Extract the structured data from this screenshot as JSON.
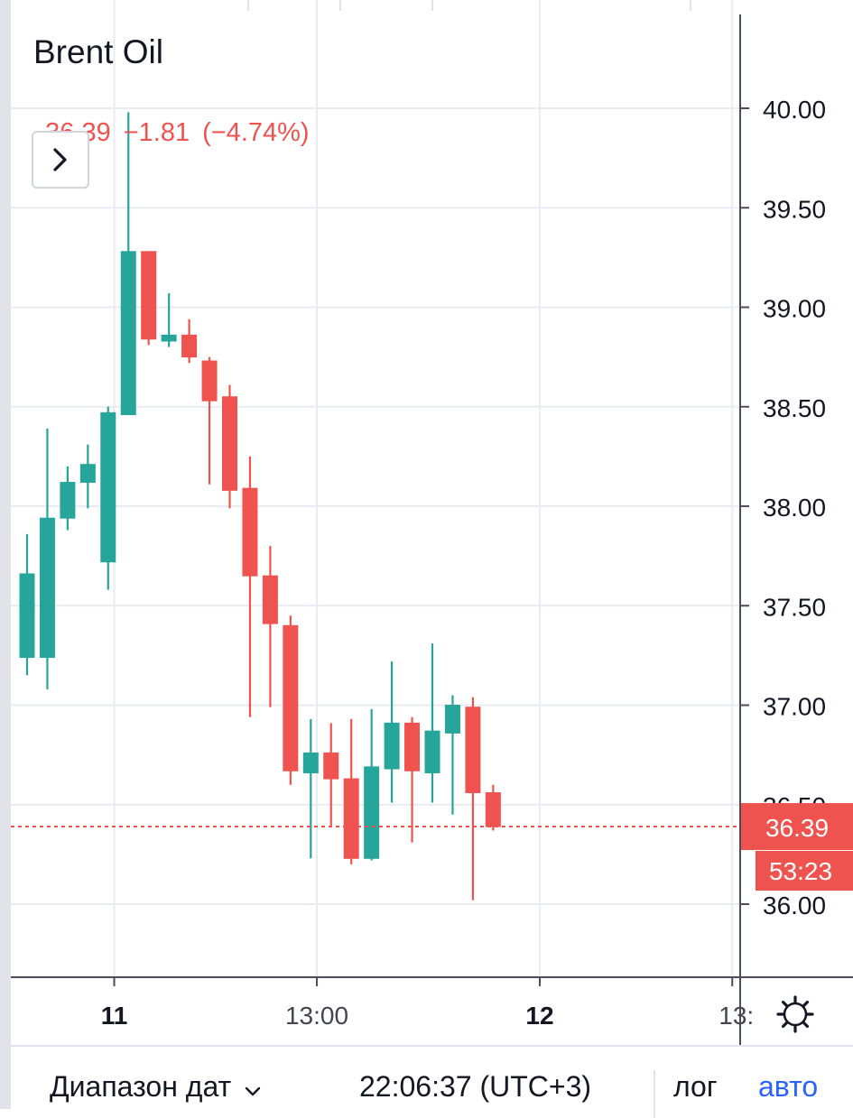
{
  "header": {
    "symbol": "Brent Oil",
    "last_price": "36.39",
    "change": "−1.81",
    "change_percent": "(−4.74%)"
  },
  "colors": {
    "up": "#26a69a",
    "down": "#ef5350",
    "grid": "#e8ebf1",
    "axis": "#4a4e59",
    "text": "#131722",
    "accent": "#2962ff"
  },
  "toolbar": {
    "expand_icon": "chevron-right-icon",
    "settings_icon": "gear-icon"
  },
  "bottom_bar": {
    "range_label": "Диапазон дат",
    "clock": "22:06:37 (UTC+3)",
    "log_label": "лог",
    "auto_label": "авто"
  },
  "chart_data": {
    "type": "candlestick",
    "title": "Brent Oil",
    "ylim": [
      35.63,
      40.32
    ],
    "y_ticks": [
      {
        "value": 40.0,
        "label": "40.00"
      },
      {
        "value": 39.5,
        "label": "39.50"
      },
      {
        "value": 39.0,
        "label": "39.00"
      },
      {
        "value": 38.5,
        "label": "38.50"
      },
      {
        "value": 38.0,
        "label": "38.00"
      },
      {
        "value": 37.5,
        "label": "37.50"
      },
      {
        "value": 37.0,
        "label": "37.00"
      },
      {
        "value": 36.5,
        "label": "36.50"
      },
      {
        "value": 36.0,
        "label": "36.00"
      }
    ],
    "x_ticks": [
      {
        "slot": 4.3,
        "label": "11",
        "bold": true
      },
      {
        "slot": 14.3,
        "label": "13:00",
        "bold": false
      },
      {
        "slot": 25.3,
        "label": "12",
        "bold": true
      },
      {
        "slot": 34.8,
        "label": "13:",
        "bold": false
      }
    ],
    "grid": true,
    "current_price": {
      "value": 36.39,
      "label": "36.39",
      "countdown": "53:23"
    },
    "candles": [
      {
        "open": 37.24,
        "high": 37.86,
        "low": 37.15,
        "close": 37.66
      },
      {
        "open": 37.24,
        "high": 38.39,
        "low": 37.08,
        "close": 37.94
      },
      {
        "open": 37.94,
        "high": 38.2,
        "low": 37.88,
        "close": 38.12
      },
      {
        "open": 38.12,
        "high": 38.31,
        "low": 37.99,
        "close": 38.21
      },
      {
        "open": 37.72,
        "high": 38.5,
        "low": 37.58,
        "close": 38.47
      },
      {
        "open": 38.46,
        "high": 39.98,
        "low": 38.46,
        "close": 39.28
      },
      {
        "open": 39.28,
        "high": 39.28,
        "low": 38.81,
        "close": 38.84
      },
      {
        "open": 38.83,
        "high": 39.07,
        "low": 38.8,
        "close": 38.86
      },
      {
        "open": 38.86,
        "high": 38.94,
        "low": 38.72,
        "close": 38.75
      },
      {
        "open": 38.73,
        "high": 38.75,
        "low": 38.11,
        "close": 38.53
      },
      {
        "open": 38.55,
        "high": 38.61,
        "low": 37.99,
        "close": 38.08
      },
      {
        "open": 38.09,
        "high": 38.25,
        "low": 36.94,
        "close": 37.65
      },
      {
        "open": 37.65,
        "high": 37.8,
        "low": 36.99,
        "close": 37.41
      },
      {
        "open": 37.4,
        "high": 37.45,
        "low": 36.6,
        "close": 36.67
      },
      {
        "open": 36.66,
        "high": 36.93,
        "low": 36.23,
        "close": 36.76
      },
      {
        "open": 36.76,
        "high": 36.91,
        "low": 36.39,
        "close": 36.63
      },
      {
        "open": 36.63,
        "high": 36.93,
        "low": 36.2,
        "close": 36.23
      },
      {
        "open": 36.23,
        "high": 36.98,
        "low": 36.22,
        "close": 36.69
      },
      {
        "open": 36.68,
        "high": 37.22,
        "low": 36.51,
        "close": 36.91
      },
      {
        "open": 36.91,
        "high": 36.94,
        "low": 36.31,
        "close": 36.67
      },
      {
        "open": 36.66,
        "high": 37.31,
        "low": 36.51,
        "close": 36.87
      },
      {
        "open": 36.86,
        "high": 37.05,
        "low": 36.45,
        "close": 37.0
      },
      {
        "open": 36.99,
        "high": 37.04,
        "low": 36.02,
        "close": 36.56
      },
      {
        "open": 36.56,
        "high": 36.6,
        "low": 36.37,
        "close": 36.39
      }
    ]
  }
}
